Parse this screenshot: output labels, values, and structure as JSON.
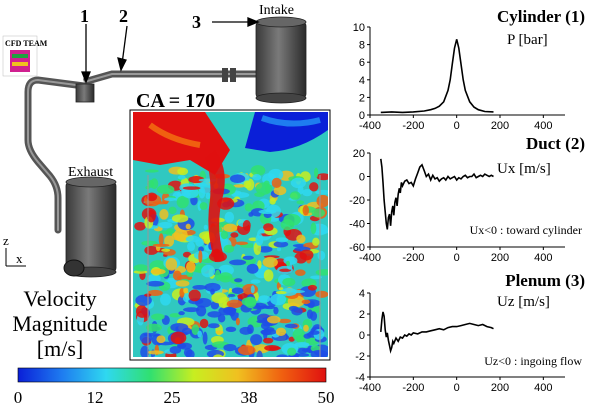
{
  "engine": {
    "labels": {
      "point_1": "1",
      "point_2": "2",
      "point_3": "3",
      "intake": "Intake",
      "exhaust": "Exhaust"
    },
    "crank_angle": "CA = 170",
    "axis_z": "z",
    "axis_x": "x",
    "logo_text": "CFD TEAM"
  },
  "colorbar": {
    "title_lines": [
      "Velocity",
      "Magnitude",
      "[m/s]"
    ],
    "ticks": [
      "0",
      "12",
      "25",
      "38",
      "50"
    ],
    "colors": [
      "#0a1fd8",
      "#1e7cf0",
      "#2fd8f0",
      "#30e070",
      "#c8ee20",
      "#f0c020",
      "#f06010",
      "#e01010"
    ]
  },
  "chart_data": [
    {
      "type": "line",
      "title": "Cylinder (1)",
      "ylabel": "P [bar]",
      "annotation": "",
      "xlim": [
        -400,
        500
      ],
      "ylim": [
        0,
        10
      ],
      "xticks": [
        -400,
        -200,
        0,
        200,
        400
      ],
      "yticks": [
        0,
        2,
        4,
        6,
        8,
        10
      ],
      "color": "#000000",
      "x": [
        -350,
        -300,
        -250,
        -200,
        -150,
        -120,
        -100,
        -80,
        -60,
        -40,
        -30,
        -20,
        -10,
        0,
        10,
        20,
        30,
        40,
        60,
        80,
        100,
        130,
        170
      ],
      "y": [
        0.3,
        0.35,
        0.3,
        0.35,
        0.45,
        0.6,
        0.75,
        1.0,
        1.5,
        2.8,
        4.0,
        5.8,
        7.6,
        8.6,
        7.6,
        5.8,
        4.0,
        2.8,
        1.5,
        0.9,
        0.6,
        0.4,
        0.35
      ]
    },
    {
      "type": "line",
      "title": "Duct (2)",
      "ylabel": "Ux [m/s]",
      "annotation": "Ux<0 : toward cylinder",
      "xlim": [
        -400,
        500
      ],
      "ylim": [
        -60,
        20
      ],
      "xticks": [
        -400,
        -200,
        0,
        200,
        400
      ],
      "yticks": [
        -60,
        -40,
        -20,
        0,
        20
      ],
      "color": "#000000",
      "x": [
        -350,
        -345,
        -340,
        -335,
        -330,
        -325,
        -320,
        -315,
        -310,
        -305,
        -300,
        -295,
        -290,
        -285,
        -280,
        -275,
        -270,
        -265,
        -260,
        -255,
        -250,
        -240,
        -230,
        -220,
        -210,
        -200,
        -190,
        -180,
        -170,
        -160,
        -150,
        -140,
        -130,
        -120,
        -110,
        -100,
        -90,
        -80,
        -70,
        -60,
        -50,
        -40,
        -30,
        -20,
        -10,
        0,
        10,
        20,
        30,
        40,
        50,
        60,
        70,
        80,
        90,
        100,
        110,
        120,
        130,
        140,
        150,
        160,
        170
      ],
      "y": [
        15,
        8,
        -5,
        -20,
        -30,
        -40,
        -45,
        -35,
        -32,
        -42,
        -30,
        -25,
        -33,
        -22,
        -18,
        -25,
        -15,
        -10,
        -14,
        -5,
        -8,
        -4,
        -3,
        -6,
        -5,
        -8,
        -2,
        3,
        8,
        10,
        5,
        0,
        2,
        -3,
        1,
        -2,
        -1,
        -4,
        -2,
        -1,
        -3,
        0,
        -2,
        -1,
        0,
        -3,
        -1,
        -2,
        0,
        1,
        -1,
        0,
        0,
        2,
        -1,
        0,
        1,
        0,
        2,
        1,
        0,
        1,
        0
      ]
    },
    {
      "type": "line",
      "title": "Plenum (3)",
      "ylabel": "Uz [m/s]",
      "annotation": "Uz<0 : ingoing flow",
      "xlim": [
        -400,
        500
      ],
      "ylim": [
        -4,
        4
      ],
      "xticks": [
        -400,
        -200,
        0,
        200,
        400
      ],
      "yticks": [
        -4,
        -2,
        0,
        2,
        4
      ],
      "color": "#000000",
      "x": [
        -350,
        -345,
        -340,
        -335,
        -330,
        -325,
        -320,
        -315,
        -310,
        -305,
        -300,
        -295,
        -290,
        -280,
        -270,
        -260,
        -250,
        -240,
        -230,
        -220,
        -210,
        -200,
        -180,
        -160,
        -140,
        -120,
        -100,
        -80,
        -60,
        -40,
        -20,
        0,
        20,
        40,
        60,
        80,
        100,
        120,
        140,
        160,
        170
      ],
      "y": [
        0.3,
        1.5,
        2.2,
        1.8,
        0.5,
        -0.2,
        0.2,
        -0.5,
        -1.0,
        -1.5,
        -1.2,
        -0.6,
        -0.8,
        -0.3,
        -0.6,
        -0.2,
        -0.3,
        0.0,
        -0.1,
        0.1,
        0.0,
        0.2,
        0.1,
        0.3,
        0.3,
        0.4,
        0.5,
        0.6,
        0.5,
        0.7,
        0.8,
        0.8,
        0.9,
        1.0,
        1.1,
        1.0,
        0.9,
        1.0,
        0.8,
        0.7,
        0.6
      ]
    }
  ]
}
